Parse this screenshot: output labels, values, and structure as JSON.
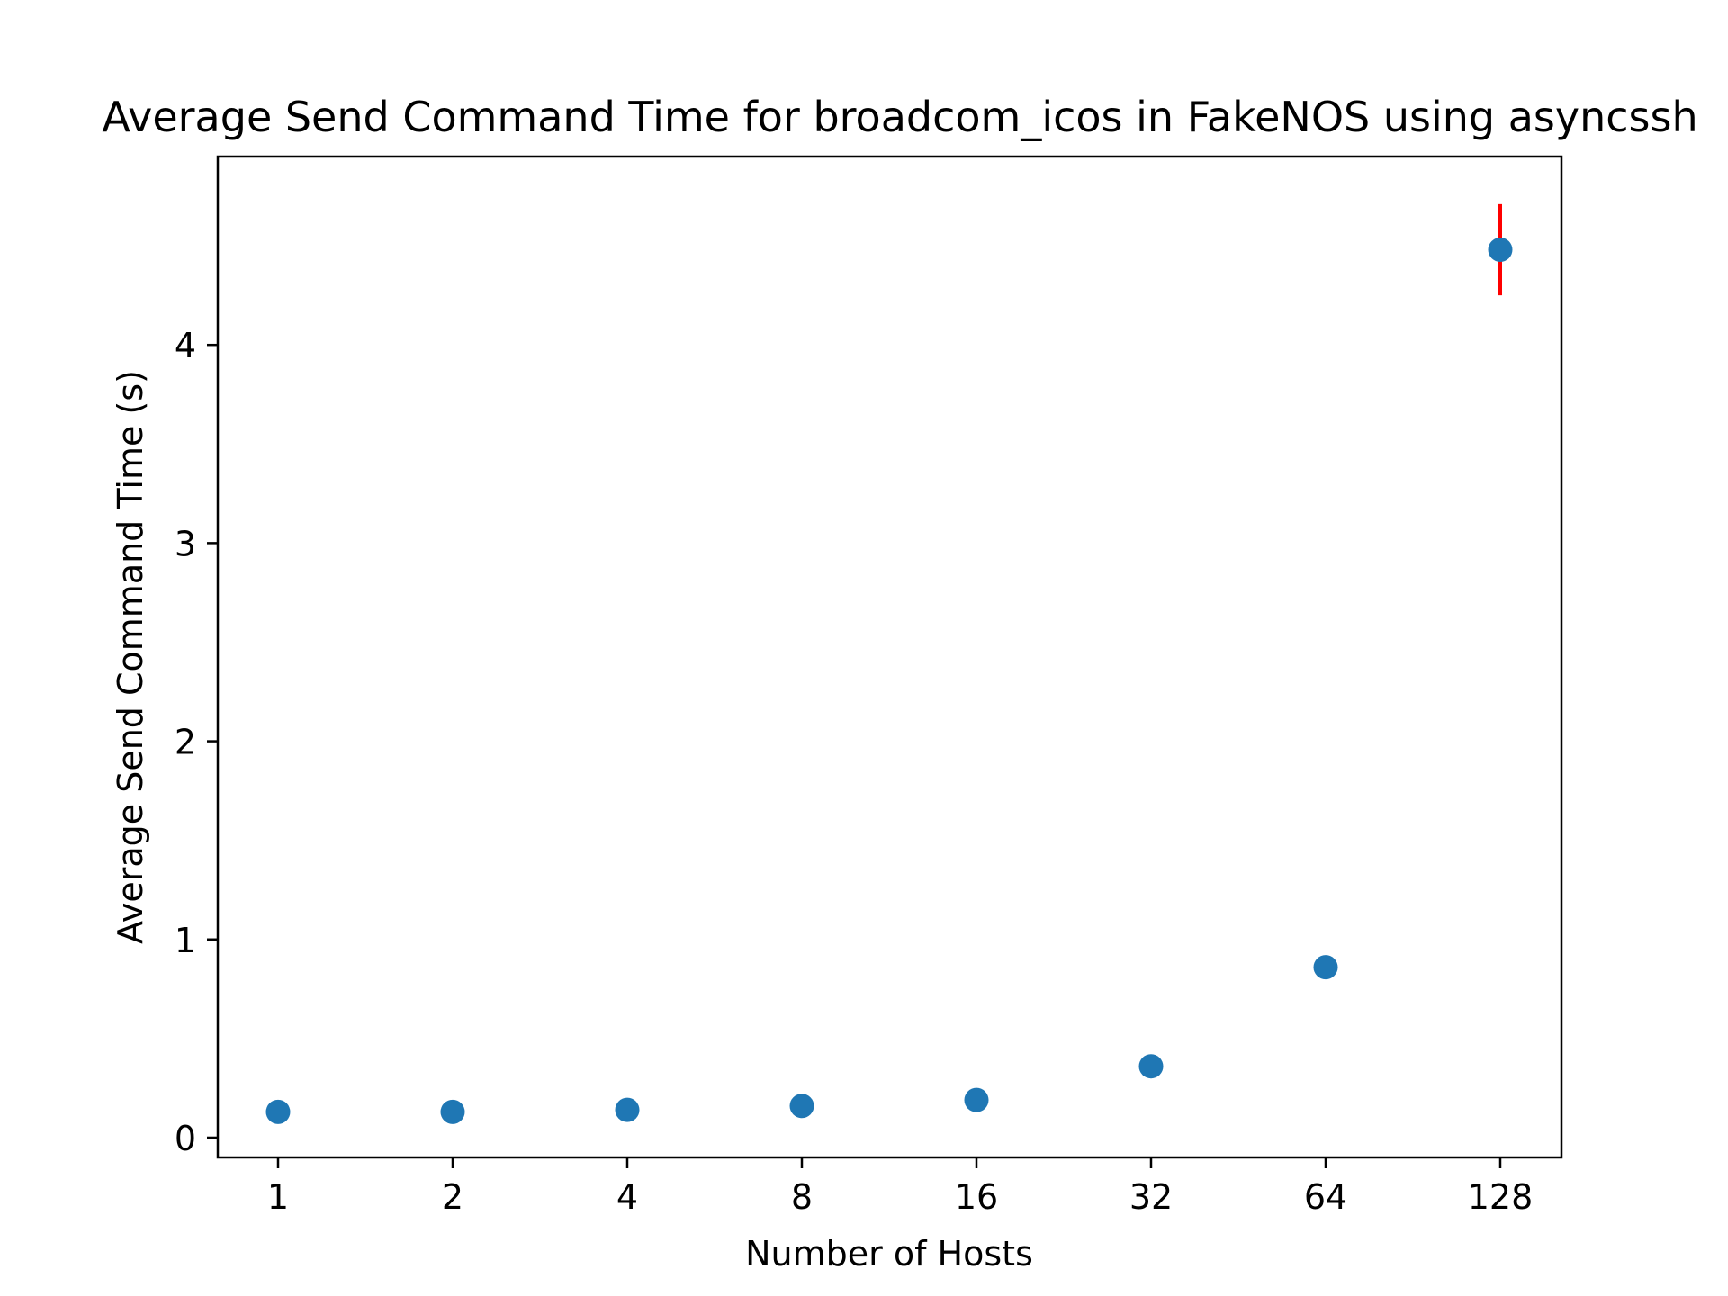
{
  "chart_data": {
    "type": "scatter",
    "title": "Average Send Command Time for broadcom_icos in FakeNOS using asyncssh",
    "xlabel": "Number of Hosts",
    "ylabel": "Average Send Command Time (s)",
    "x_scale": "categorical",
    "categories": [
      "1",
      "2",
      "4",
      "8",
      "16",
      "32",
      "64",
      "128"
    ],
    "series": [
      {
        "name": "Average Send Command Time",
        "color": "#1f77b4",
        "values": [
          0.13,
          0.13,
          0.14,
          0.16,
          0.19,
          0.36,
          0.86,
          4.48
        ],
        "error": [
          0,
          0,
          0,
          0,
          0,
          0,
          0,
          0.23
        ]
      }
    ],
    "error_bar_color": "#ff0000",
    "yticks": [
      0,
      1,
      2,
      3,
      4
    ],
    "ylim": [
      -0.1,
      4.95
    ],
    "grid": false,
    "legend": "none"
  }
}
